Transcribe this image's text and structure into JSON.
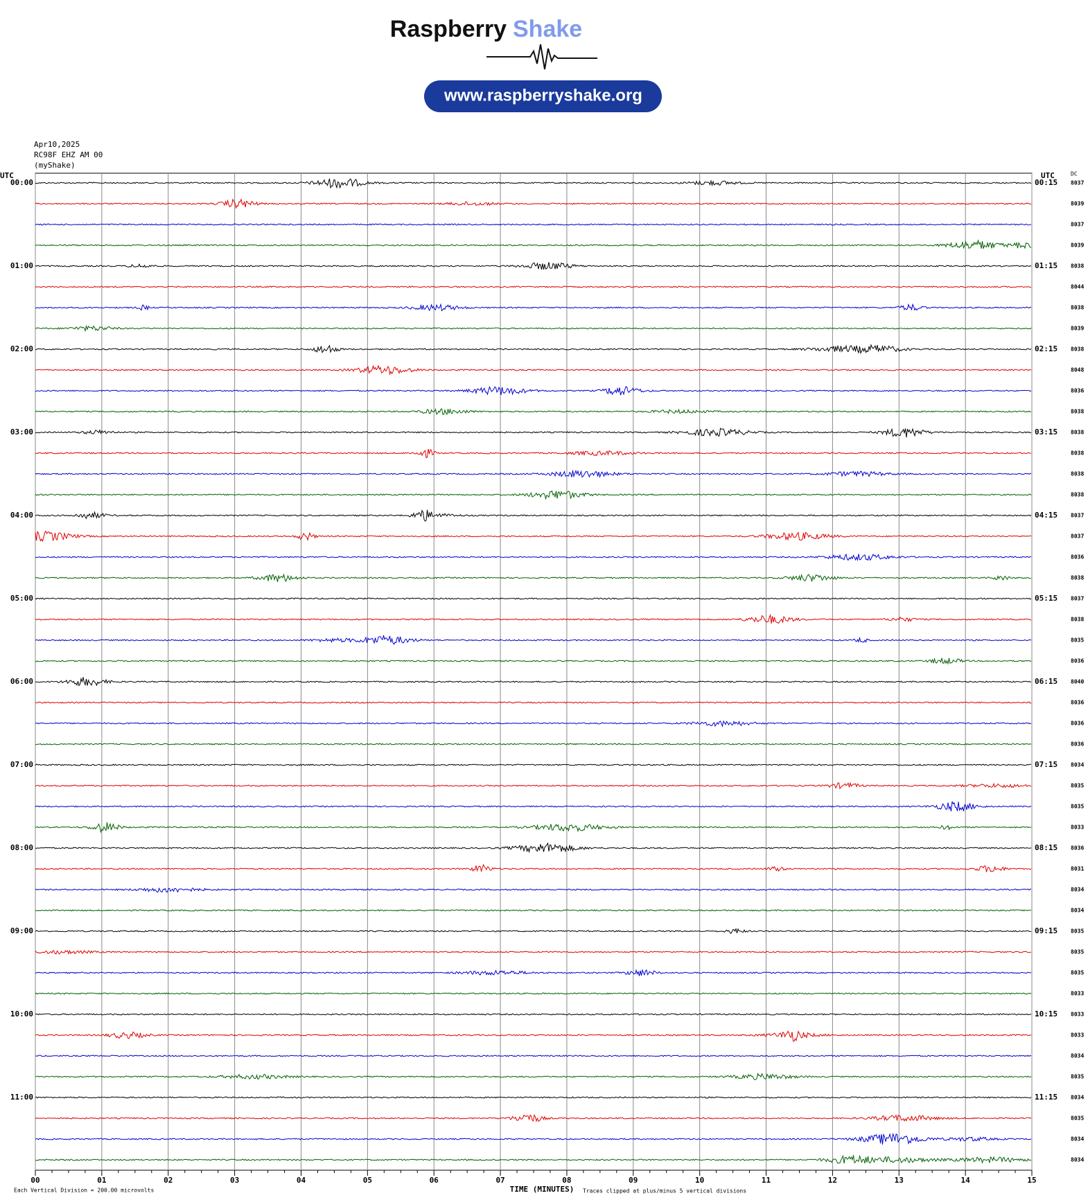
{
  "header": {
    "brand_1": "Raspberry",
    "brand_2": "Shake",
    "url": "www.raspberryshake.org"
  },
  "info": [
    "Apr10,2025",
    "RC98F EHZ AM 00",
    "(myShake)"
  ],
  "left_title": "UTC",
  "right_title": "UTC",
  "dc_title": "DC",
  "left_labels": [
    "00:00",
    "01:00",
    "02:00",
    "03:00",
    "04:00",
    "05:00",
    "06:00",
    "07:00",
    "08:00",
    "09:00",
    "10:00",
    "11:00"
  ],
  "right_labels": [
    "00:15",
    "01:15",
    "02:15",
    "03:15",
    "04:15",
    "05:15",
    "06:15",
    "07:15",
    "08:15",
    "09:15",
    "10:15",
    "11:15"
  ],
  "dc_values": [
    "8037",
    "8039",
    "8037",
    "8039",
    "8038",
    "8044",
    "8038",
    "8039",
    "8038",
    "8048",
    "8036",
    "8038",
    "8038",
    "8038",
    "8038",
    "8038",
    "8037",
    "8037",
    "8036",
    "8038",
    "8037",
    "8038",
    "8035",
    "8036",
    "8040",
    "8036",
    "8036",
    "8036",
    "8034",
    "8035",
    "8035",
    "8033",
    "8036",
    "8031",
    "8034",
    "8034",
    "8035",
    "8035",
    "8035",
    "8033",
    "8033",
    "8033",
    "8034",
    "8035",
    "8034",
    "8035",
    "8034",
    "8034"
  ],
  "trace_colors": [
    "#000000",
    "#e00000",
    "#0000d0",
    "#006000"
  ],
  "x_ticks": [
    "00",
    "01",
    "02",
    "03",
    "04",
    "05",
    "06",
    "07",
    "08",
    "09",
    "10",
    "11",
    "12",
    "13",
    "14",
    "15"
  ],
  "x_label": "TIME (MINUTES)",
  "footnote_left": "Each Vertical Division =  200.00 microvolts",
  "footnote_right": "Traces clipped at plus/minus 5 vertical divisions"
}
